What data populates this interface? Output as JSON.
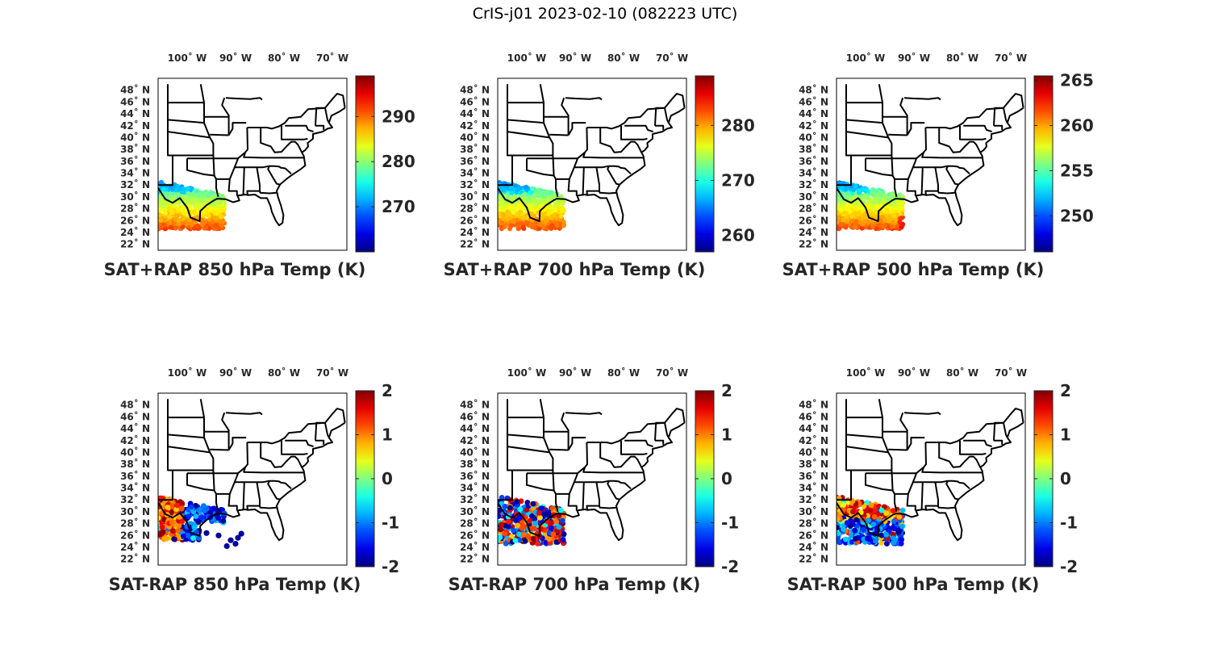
{
  "figure": {
    "title": "CrIS-j01 2023-02-10 (082223 UTC)"
  },
  "axes": {
    "lon_ticks": [
      "100˚ W",
      "90˚ W",
      "80˚ W",
      "70˚ W"
    ],
    "lat_ticks": [
      "48˚ N",
      "46˚ N",
      "44˚ N",
      "42˚ N",
      "40˚ N",
      "38˚ N",
      "36˚ N",
      "34˚ N",
      "32˚ N",
      "30˚ N",
      "28˚ N",
      "26˚ N",
      "24˚ N",
      "22˚ N"
    ],
    "lon_range": [
      -106,
      -67
    ],
    "lat_range": [
      21,
      50
    ]
  },
  "colors": {
    "colormap": "jet",
    "map_outline": "#000000"
  },
  "chart_data": [
    {
      "type": "scatter",
      "title": "SAT+RAP 850 hPa Temp (K)",
      "colorbar": {
        "min": 260,
        "max": 299,
        "ticks": [
          "270",
          "280",
          "290"
        ]
      },
      "field": {
        "region": "Texas / western Gulf",
        "min": 265,
        "max": 296,
        "pattern": "north-cold-south-warm"
      }
    },
    {
      "type": "scatter",
      "title": "SAT+RAP 700 hPa Temp (K)",
      "colorbar": {
        "min": 257,
        "max": 289,
        "ticks": [
          "260",
          "270",
          "280"
        ]
      },
      "field": {
        "region": "Texas / western Gulf",
        "min": 260,
        "max": 285,
        "pattern": "north-cold-south-warm"
      }
    },
    {
      "type": "scatter",
      "title": "SAT+RAP 500 hPa Temp (K)",
      "colorbar": {
        "min": 246,
        "max": 265.5,
        "ticks": [
          "265",
          "260",
          "255",
          "250"
        ]
      },
      "field": {
        "region": "Texas / western Gulf",
        "min": 249,
        "max": 264,
        "pattern": "north-cold-south-warm"
      }
    },
    {
      "type": "scatter",
      "title": "SAT-RAP 850 hPa Temp (K)",
      "colorbar": {
        "min": -2,
        "max": 2,
        "ticks": [
          "2",
          "1",
          "0",
          "-1",
          "-2"
        ]
      },
      "field": {
        "region": "Texas / Gulf coast",
        "pattern": "west-warm-east-cold"
      }
    },
    {
      "type": "scatter",
      "title": "SAT-RAP 700 hPa Temp (K)",
      "colorbar": {
        "min": -2,
        "max": 2,
        "ticks": [
          "2",
          "1",
          "0",
          "-1",
          "-2"
        ]
      },
      "field": {
        "region": "Texas / western Gulf",
        "pattern": "mixed"
      }
    },
    {
      "type": "scatter",
      "title": "SAT-RAP 500 hPa Temp (K)",
      "colorbar": {
        "min": -2,
        "max": 2,
        "ticks": [
          "2",
          "1",
          "0",
          "-1",
          "-2"
        ]
      },
      "field": {
        "region": "Texas / western Gulf",
        "pattern": "cold-south-warm-north"
      }
    }
  ]
}
